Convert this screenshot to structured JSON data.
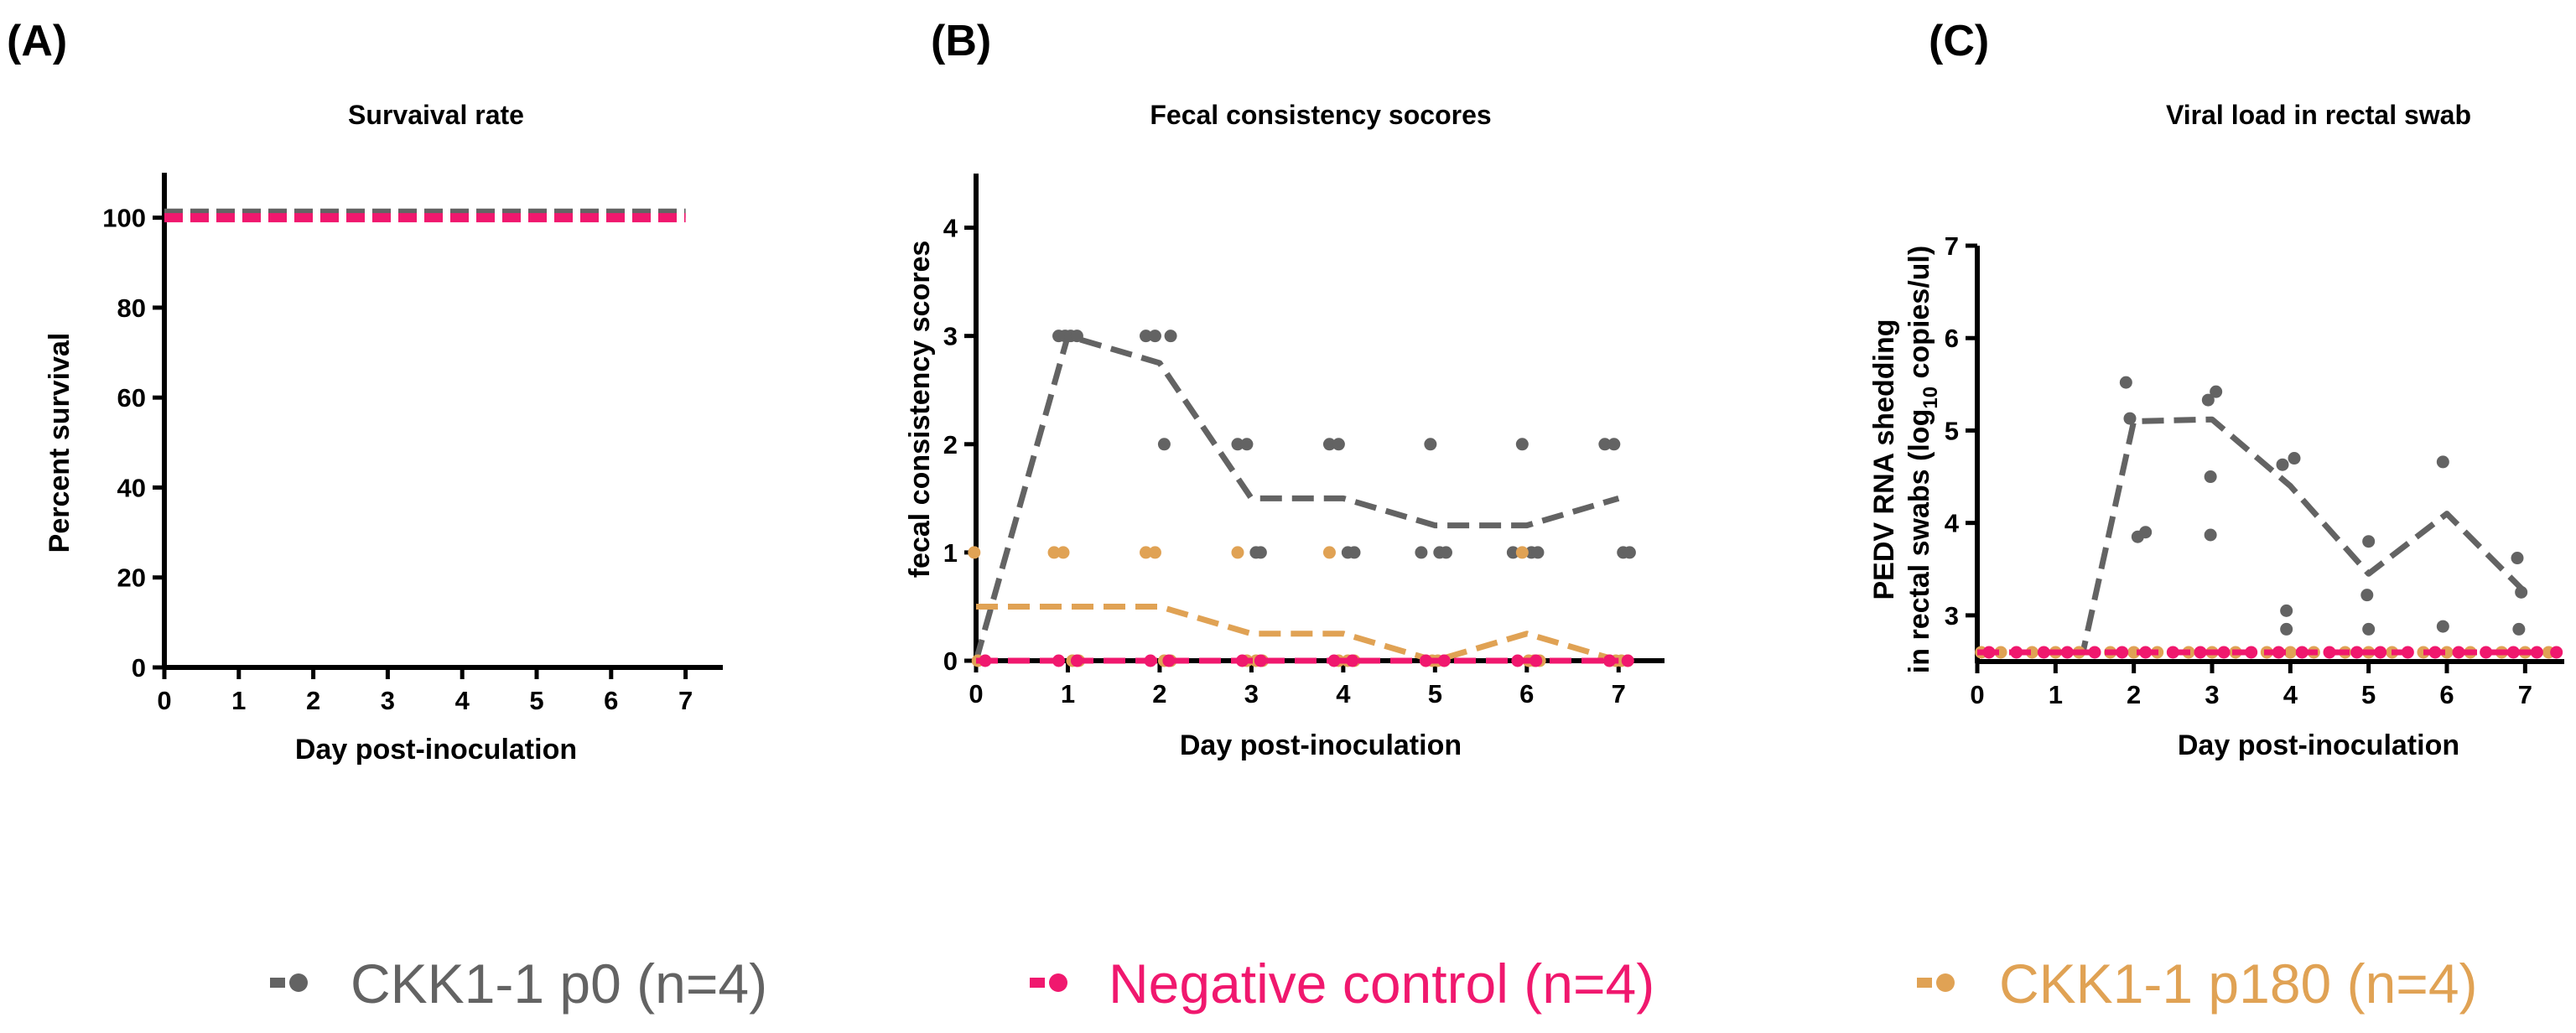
{
  "colors": {
    "p0": "#636363",
    "neg": "#f0186e",
    "p180": "#e0a254"
  },
  "legend": [
    {
      "key": "p0",
      "label": "CKK1-1 p0 (n=4)"
    },
    {
      "key": "neg",
      "label": "Negative control (n=4)"
    },
    {
      "key": "p180",
      "label": "CKK1-1 p180 (n=4)"
    }
  ],
  "chart_data": [
    {
      "panel": "(A)",
      "type": "line",
      "title": "Survaival rate",
      "xlabel": "Day post-inoculation",
      "ylabel": "Percent survival",
      "xlim": [
        0,
        7.5
      ],
      "ylim": [
        0,
        110
      ],
      "xticks": [
        0,
        1,
        2,
        3,
        4,
        5,
        6,
        7
      ],
      "yticks": [
        0,
        20,
        40,
        60,
        80,
        100
      ],
      "series": [
        {
          "key": "p0",
          "name": "CKK1-1 p0 (n=4)",
          "x": [
            0,
            7
          ],
          "y": [
            101,
            101
          ]
        },
        {
          "key": "neg",
          "name": "Negative control (n=4)",
          "x": [
            0,
            7
          ],
          "y": [
            100,
            100
          ]
        }
      ]
    },
    {
      "panel": "(B)",
      "type": "scatter",
      "title": "Fecal consistency socores",
      "xlabel": "Day post-inoculation",
      "ylabel": "fecal consistency scores",
      "xlim": [
        0,
        7.5
      ],
      "ylim": [
        0,
        4.5
      ],
      "xticks": [
        0,
        1,
        2,
        3,
        4,
        5,
        6,
        7
      ],
      "yticks": [
        0,
        1,
        2,
        3,
        4
      ],
      "series": [
        {
          "key": "p0",
          "name": "CKK1-1 p0 (n=4)",
          "line": {
            "x": [
              0,
              1,
              2,
              3,
              4,
              5,
              6,
              7
            ],
            "y": [
              0,
              3,
              2.75,
              1.5,
              1.5,
              1.25,
              1.25,
              1.5
            ]
          },
          "points": [
            [
              0.9,
              3
            ],
            [
              0.97,
              3
            ],
            [
              1.03,
              3
            ],
            [
              1.1,
              3
            ],
            [
              1.85,
              3
            ],
            [
              1.95,
              3
            ],
            [
              2.05,
              2
            ],
            [
              2.12,
              3
            ],
            [
              2.85,
              2
            ],
            [
              2.95,
              2
            ],
            [
              3.05,
              1
            ],
            [
              3.1,
              1
            ],
            [
              3.85,
              2
            ],
            [
              3.95,
              2
            ],
            [
              4.05,
              1
            ],
            [
              4.12,
              1
            ],
            [
              4.85,
              1
            ],
            [
              4.95,
              2
            ],
            [
              5.05,
              1
            ],
            [
              5.12,
              1
            ],
            [
              5.85,
              1
            ],
            [
              5.95,
              2
            ],
            [
              6.05,
              1
            ],
            [
              6.12,
              1
            ],
            [
              6.85,
              2
            ],
            [
              6.95,
              2
            ],
            [
              7.05,
              1
            ],
            [
              7.12,
              1
            ]
          ]
        },
        {
          "key": "p180",
          "name": "CKK1-1 p180 (n=4)",
          "line": {
            "x": [
              0,
              1,
              2,
              3,
              4,
              5,
              6,
              7
            ],
            "y": [
              0.5,
              0.5,
              0.5,
              0.25,
              0.25,
              0,
              0.25,
              0
            ]
          },
          "points": [
            [
              -0.02,
              1
            ],
            [
              0.02,
              0
            ],
            [
              0.85,
              1
            ],
            [
              0.95,
              1
            ],
            [
              1.05,
              0
            ],
            [
              1.12,
              0
            ],
            [
              1.85,
              1
            ],
            [
              1.95,
              1
            ],
            [
              2.05,
              0
            ],
            [
              2.12,
              0
            ],
            [
              2.85,
              1
            ],
            [
              2.95,
              0
            ],
            [
              3.05,
              0
            ],
            [
              3.12,
              0
            ],
            [
              3.85,
              1
            ],
            [
              3.95,
              0
            ],
            [
              4.05,
              0
            ],
            [
              4.12,
              0
            ],
            [
              4.9,
              0
            ],
            [
              4.97,
              0
            ],
            [
              5.03,
              0
            ],
            [
              5.1,
              0
            ],
            [
              5.95,
              1
            ],
            [
              6.02,
              0
            ],
            [
              6.08,
              0
            ],
            [
              6.14,
              0
            ],
            [
              6.9,
              0
            ],
            [
              6.97,
              0
            ],
            [
              7.03,
              0
            ],
            [
              7.1,
              0
            ]
          ]
        },
        {
          "key": "neg",
          "name": "Negative control (n=4)",
          "line": {
            "x": [
              0,
              7
            ],
            "y": [
              0,
              0
            ]
          },
          "points": [
            [
              0.1,
              0
            ],
            [
              0.9,
              0
            ],
            [
              1.1,
              0
            ],
            [
              1.9,
              0
            ],
            [
              2.1,
              0
            ],
            [
              2.9,
              0
            ],
            [
              3.1,
              0
            ],
            [
              3.9,
              0
            ],
            [
              4.1,
              0
            ],
            [
              4.9,
              0
            ],
            [
              5.1,
              0
            ],
            [
              5.9,
              0
            ],
            [
              6.1,
              0
            ],
            [
              6.9,
              0
            ],
            [
              7.1,
              0
            ]
          ]
        }
      ]
    },
    {
      "panel": "(C)",
      "type": "scatter",
      "title": "Viral load in rectal swab",
      "xlabel": "Day post-inoculation",
      "ylabel_line1": "PEDV RNA shedding",
      "ylabel_line2_prefix": "in rectal swabs (log",
      "ylabel_sub": "10",
      "ylabel_line2_suffix": " copies/ul)",
      "xlim": [
        0,
        7.5
      ],
      "ylim": [
        2.5,
        7
      ],
      "xticks": [
        0,
        1,
        2,
        3,
        4,
        5,
        6,
        7
      ],
      "yticks": [
        3,
        4,
        5,
        6,
        7
      ],
      "series": [
        {
          "key": "p0",
          "name": "CKK1-1 p0 (n=4)",
          "line": {
            "x": [
              0,
              1.35,
              2,
              3,
              4,
              5,
              6,
              7
            ],
            "y": [
              2.6,
              2.6,
              5.1,
              5.12,
              4.4,
              3.45,
              4.1,
              3.25
            ]
          },
          "points": [
            [
              1.9,
              5.52
            ],
            [
              1.95,
              5.13
            ],
            [
              2.05,
              3.85
            ],
            [
              2.15,
              3.9
            ],
            [
              2.95,
              5.33
            ],
            [
              3.05,
              5.42
            ],
            [
              2.98,
              4.5
            ],
            [
              2.98,
              3.87
            ],
            [
              3.9,
              4.63
            ],
            [
              4.05,
              4.7
            ],
            [
              3.95,
              3.05
            ],
            [
              3.95,
              2.85
            ],
            [
              5.0,
              3.8
            ],
            [
              4.98,
              3.22
            ],
            [
              5.0,
              2.85
            ],
            [
              5.95,
              4.66
            ],
            [
              5.95,
              2.88
            ],
            [
              6.9,
              3.62
            ],
            [
              6.95,
              3.25
            ],
            [
              6.92,
              2.85
            ]
          ]
        },
        {
          "key": "p180",
          "name": "CKK1-1 p180 (n=4)",
          "line": {
            "x": [
              0,
              7.4
            ],
            "y": [
              2.6,
              2.6
            ]
          },
          "points": [
            [
              0.05,
              2.6
            ],
            [
              0.3,
              2.6
            ],
            [
              0.7,
              2.6
            ],
            [
              1.0,
              2.6
            ],
            [
              1.3,
              2.6
            ],
            [
              1.7,
              2.6
            ],
            [
              2.0,
              2.6
            ],
            [
              2.3,
              2.6
            ],
            [
              2.7,
              2.6
            ],
            [
              3.0,
              2.6
            ],
            [
              3.3,
              2.6
            ],
            [
              3.7,
              2.6
            ],
            [
              4.0,
              2.6
            ],
            [
              4.3,
              2.6
            ],
            [
              4.7,
              2.6
            ],
            [
              5.0,
              2.6
            ],
            [
              5.3,
              2.6
            ],
            [
              5.7,
              2.6
            ],
            [
              6.0,
              2.6
            ],
            [
              6.3,
              2.6
            ],
            [
              6.7,
              2.6
            ],
            [
              7.0,
              2.6
            ],
            [
              7.3,
              2.6
            ]
          ]
        },
        {
          "key": "neg",
          "name": "Negative control (n=4)",
          "line": {
            "x": [
              0,
              7.4
            ],
            "y": [
              2.6,
              2.6
            ]
          },
          "points": [
            [
              0.15,
              2.6
            ],
            [
              0.5,
              2.6
            ],
            [
              0.85,
              2.6
            ],
            [
              1.15,
              2.6
            ],
            [
              1.5,
              2.6
            ],
            [
              1.85,
              2.6
            ],
            [
              2.15,
              2.6
            ],
            [
              2.5,
              2.6
            ],
            [
              2.85,
              2.6
            ],
            [
              3.15,
              2.6
            ],
            [
              3.5,
              2.6
            ],
            [
              3.85,
              2.6
            ],
            [
              4.15,
              2.6
            ],
            [
              4.5,
              2.6
            ],
            [
              4.85,
              2.6
            ],
            [
              5.15,
              2.6
            ],
            [
              5.5,
              2.6
            ],
            [
              5.85,
              2.6
            ],
            [
              6.15,
              2.6
            ],
            [
              6.5,
              2.6
            ],
            [
              6.85,
              2.6
            ],
            [
              7.15,
              2.6
            ],
            [
              7.4,
              2.6
            ]
          ]
        }
      ]
    }
  ]
}
